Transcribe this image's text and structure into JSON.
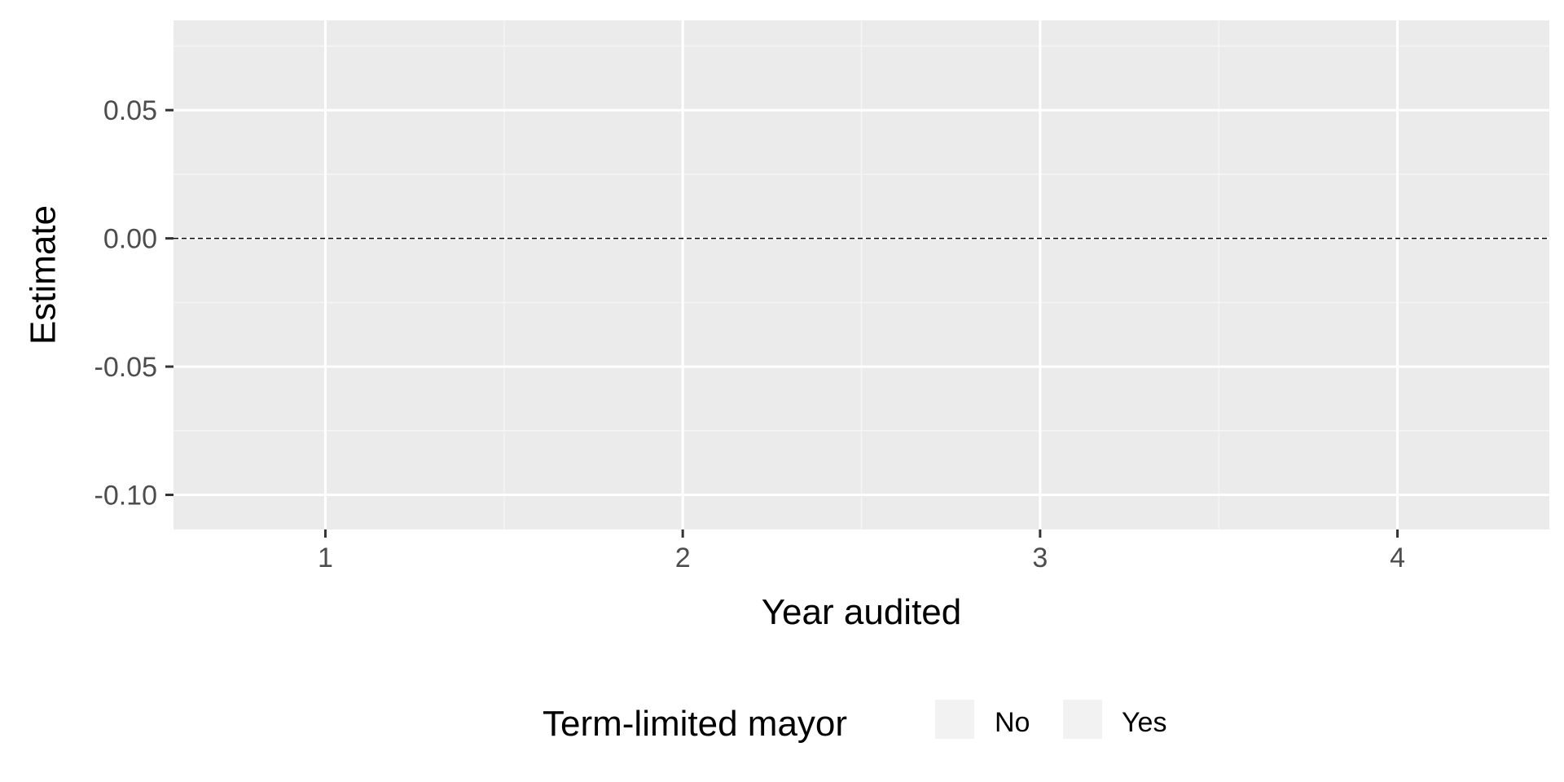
{
  "chart_data": {
    "type": "line",
    "title": "",
    "xlabel": "Year audited",
    "ylabel": "Estimate",
    "x_ticks": [
      1,
      2,
      3,
      4
    ],
    "x_tick_labels": [
      "1",
      "2",
      "3",
      "4"
    ],
    "xlim": [
      0.575,
      4.425
    ],
    "y_ticks": [
      0.05,
      0.0,
      -0.05,
      -0.1
    ],
    "y_tick_labels": [
      "0.05",
      "0.00",
      "-0.05",
      "-0.10"
    ],
    "ylim": [
      -0.1135,
      0.085
    ],
    "reference_line": {
      "y": 0,
      "style": "dashed"
    },
    "grid": true,
    "series": [],
    "legend": {
      "title": "Term-limited mayor",
      "position": "bottom",
      "entries": [
        {
          "label": "No",
          "color": "#f2f2f2"
        },
        {
          "label": "Yes",
          "color": "#f2f2f2"
        }
      ]
    },
    "colors": {
      "panel_background": "#ebebeb",
      "grid_major": "#ffffff",
      "grid_minor": "#f5f5f5",
      "tick_text": "#4d4d4d",
      "tick_mark": "#333333",
      "reference_line": "#000000"
    }
  }
}
